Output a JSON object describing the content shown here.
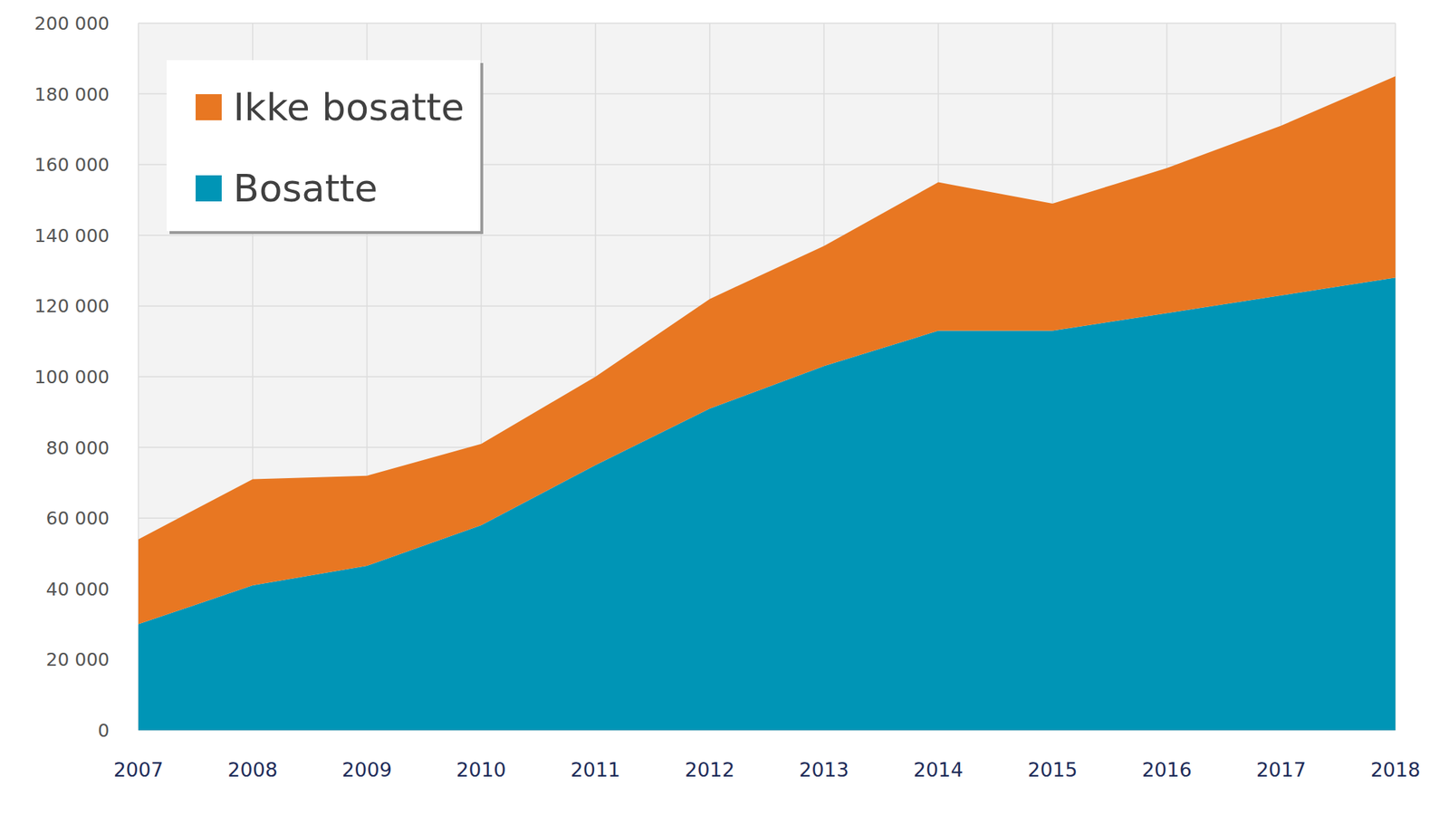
{
  "chart_data": {
    "type": "area",
    "stacked": true,
    "grid": true,
    "legend": "upper left",
    "categories": [
      "2007",
      "2008",
      "2009",
      "2010",
      "2011",
      "2012",
      "2013",
      "2014",
      "2015",
      "2016",
      "2017",
      "2018"
    ],
    "series": [
      {
        "name": "Bosatte",
        "color": "#0095b6",
        "values": [
          30000,
          41000,
          46500,
          58000,
          75000,
          91000,
          103000,
          113000,
          113000,
          118000,
          123000,
          128000
        ]
      },
      {
        "name": "Ikke bosatte",
        "color": "#e87722",
        "values": [
          24000,
          30000,
          25500,
          23000,
          25000,
          31000,
          34000,
          42000,
          36000,
          41000,
          48000,
          57000
        ]
      }
    ],
    "ylim": [
      0,
      200000
    ],
    "yticks": [
      0,
      {
        "value": 20000,
        "label": "20 000"
      },
      {
        "value": 40000,
        "label": "40 000"
      },
      {
        "value": 60000,
        "label": "60 000"
      },
      {
        "value": 80000,
        "label": "80 000"
      },
      {
        "value": 100000,
        "label": "100 000"
      },
      {
        "value": 120000,
        "label": "120 000"
      },
      {
        "value": 140000,
        "label": "140 000"
      },
      {
        "value": 160000,
        "label": "160 000"
      },
      {
        "value": 180000,
        "label": "180 000"
      },
      {
        "value": 200000,
        "label": "200 000"
      }
    ]
  }
}
